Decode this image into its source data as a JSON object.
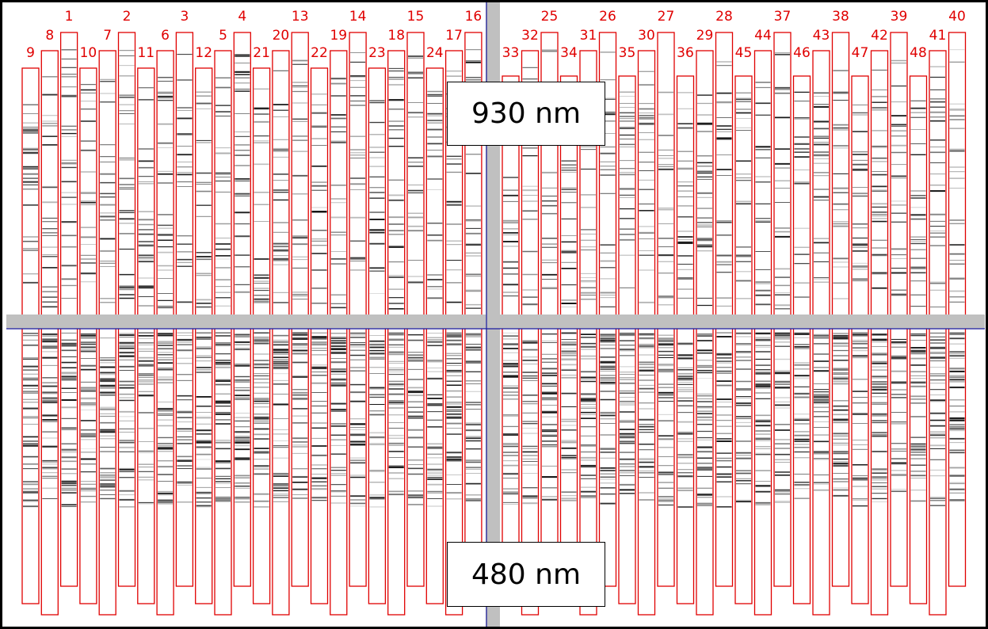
{
  "image": {
    "top_wavelength_label": "930 nm",
    "bottom_wavelength_label": "480 nm"
  },
  "colors": {
    "strip_outline": "#e00000",
    "strip_number": "#e00000",
    "crosshair": "#c0c0c0",
    "crosshair_center_line": "#1a1aa0",
    "band": "#141414",
    "background": "#ffffff",
    "frame_border": "#000000"
  },
  "strips": {
    "left_panel_numbers": [
      "9",
      "8",
      "1",
      "10",
      "7",
      "2",
      "11",
      "6",
      "3",
      "12",
      "5",
      "4",
      "21",
      "20",
      "13",
      "22",
      "19",
      "14",
      "23",
      "18",
      "15",
      "24",
      "17",
      "16"
    ],
    "right_panel_numbers": [
      "33",
      "32",
      "25",
      "34",
      "31",
      "26",
      "35",
      "30",
      "27",
      "36",
      "29",
      "28",
      "45",
      "44",
      "37",
      "46",
      "43",
      "38",
      "47",
      "42",
      "39",
      "48",
      "41",
      "40"
    ]
  }
}
